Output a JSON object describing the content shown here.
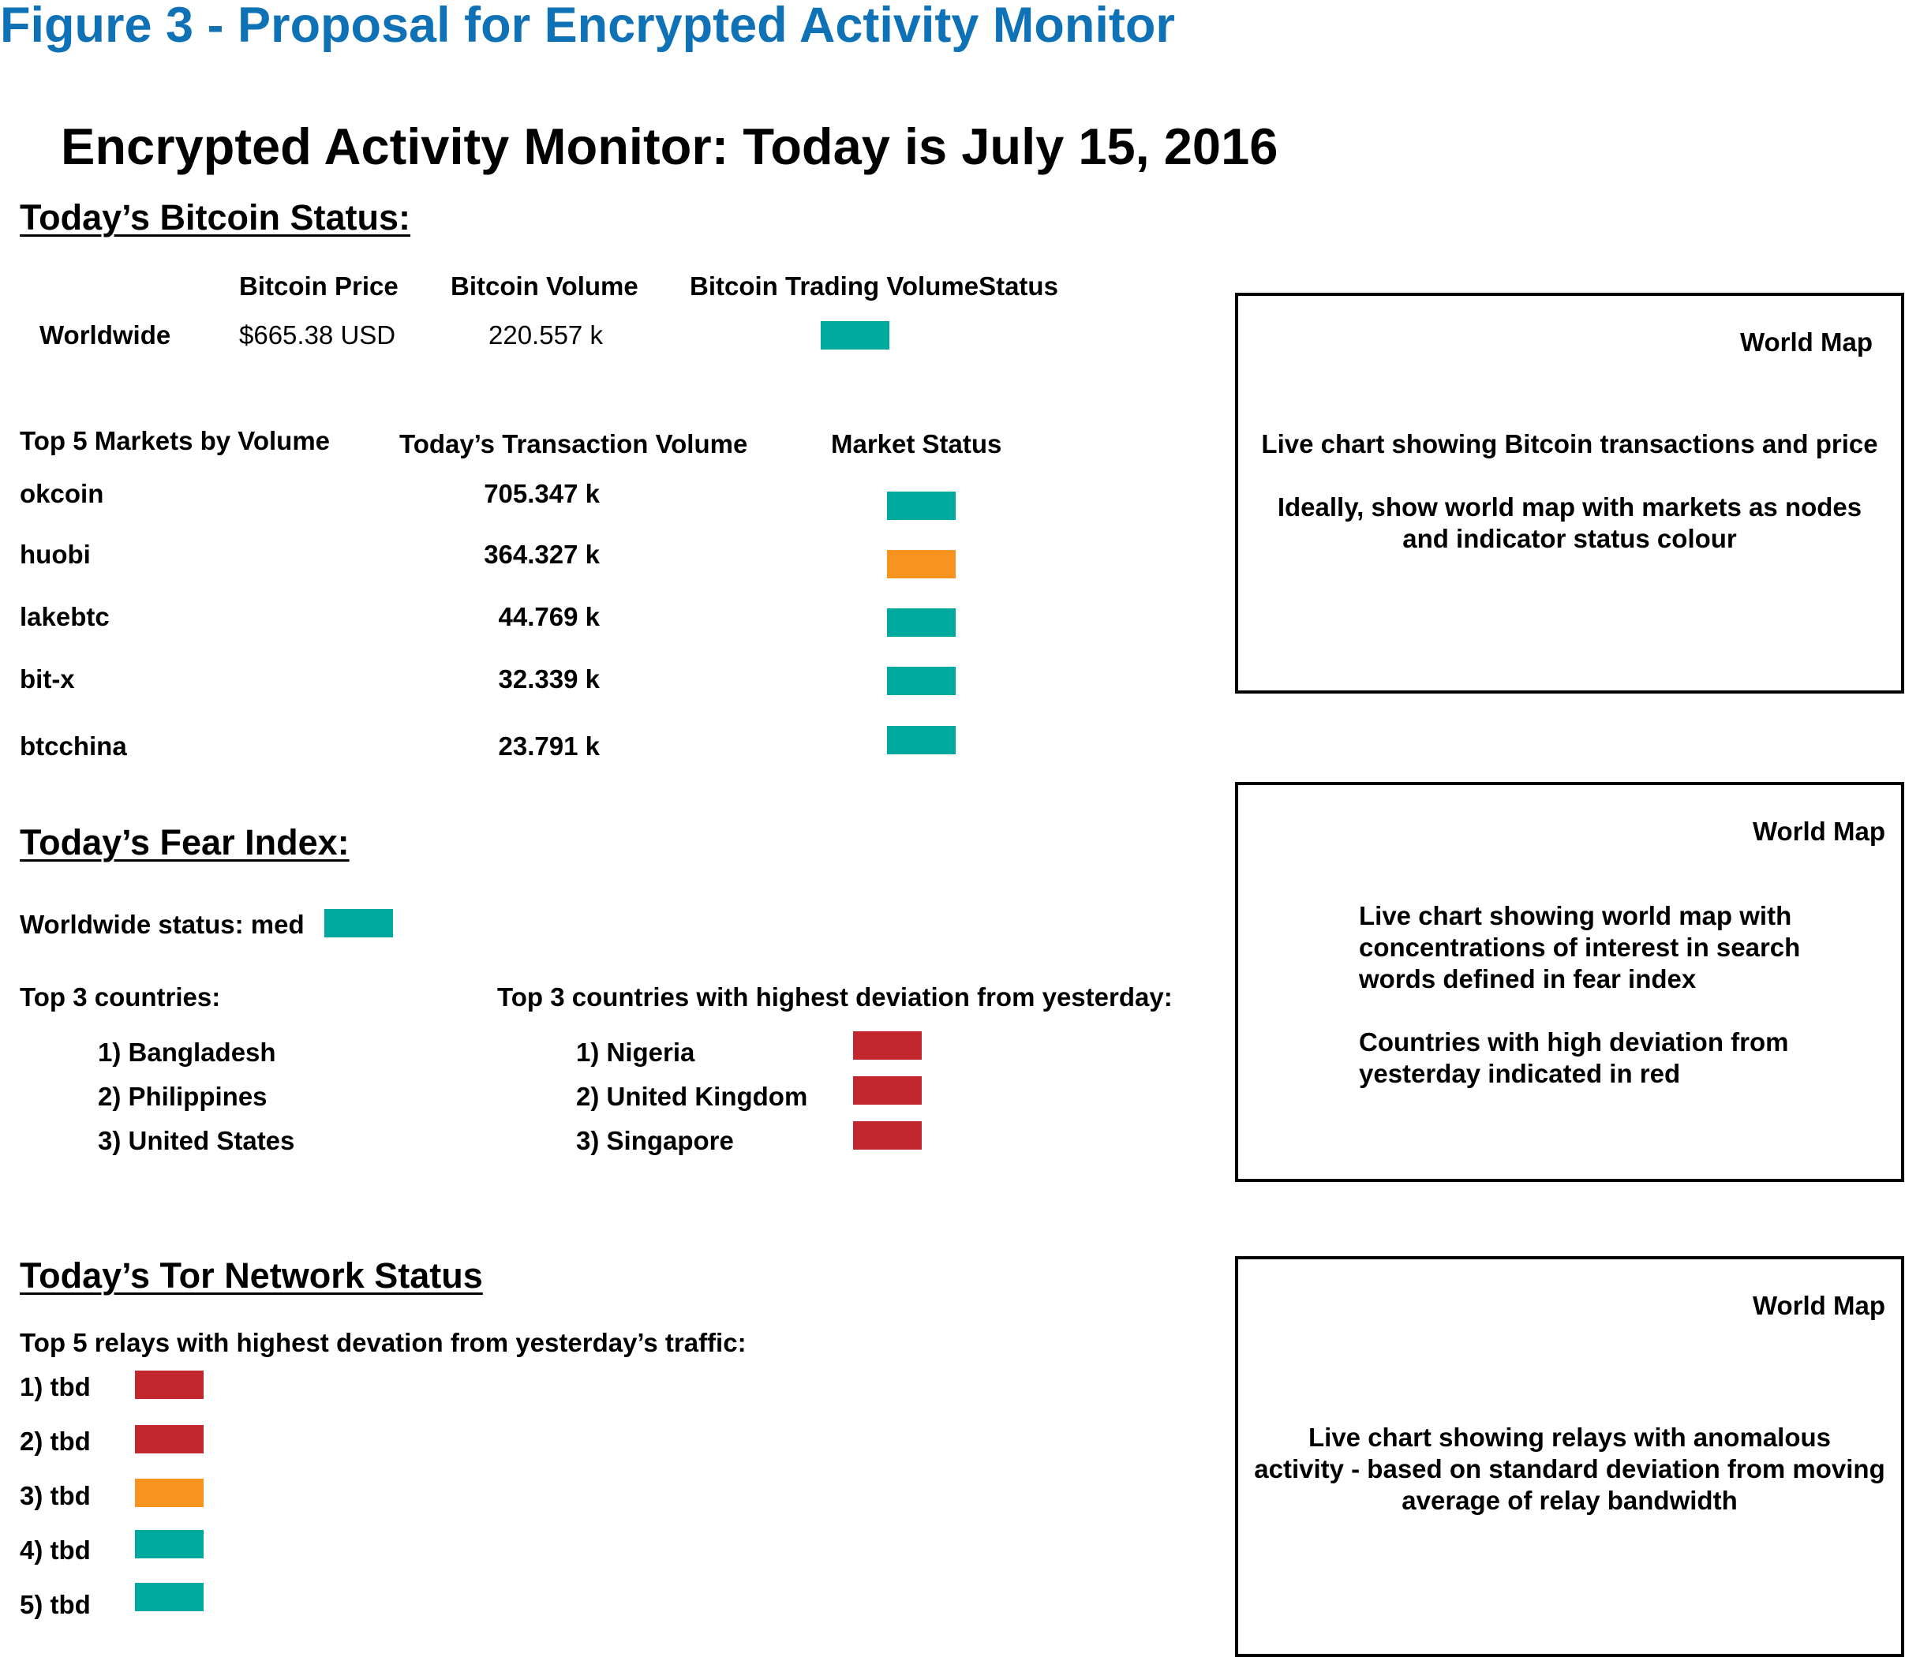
{
  "figure_title": "Figure 3 - Proposal for Encrypted Activity Monitor",
  "main_title": "Encrypted Activity Monitor: Today is July 15, 2016",
  "colors": {
    "teal": "#00a99d",
    "orange": "#f7931e",
    "red": "#c1272d",
    "figure_blue": "#0f72b6"
  },
  "bitcoin": {
    "section_title": "Today’s Bitcoin Status:",
    "headers": {
      "price": "Bitcoin Price",
      "volume": "Bitcoin Volume",
      "status": "Bitcoin Trading VolumeStatus"
    },
    "row": {
      "region": "Worldwide",
      "price": "$665.38 USD",
      "volume": "220.557 k",
      "status": "teal"
    },
    "markets": {
      "headers": {
        "name": "Top 5 Markets by Volume",
        "volume": "Today’s Transaction Volume",
        "status": "Market Status"
      },
      "rows": [
        {
          "name": "okcoin",
          "volume": "705.347 k",
          "status": "teal"
        },
        {
          "name": "huobi",
          "volume": "364.327 k",
          "status": "orange"
        },
        {
          "name": "lakebtc",
          "volume": "44.769 k",
          "status": "teal"
        },
        {
          "name": "bit-x",
          "volume": "32.339 k",
          "status": "teal"
        },
        {
          "name": "btcchina",
          "volume": "23.791 k",
          "status": "teal"
        }
      ]
    }
  },
  "fear": {
    "section_title": "Today’s Fear Index:",
    "worldwide_status": "Worldwide status: med",
    "worldwide_status_color": "teal",
    "top3_label": "Top 3 countries:",
    "top3": [
      "1) Bangladesh",
      "2) Philippines",
      "3) United States"
    ],
    "deviation_label": "Top 3 countries with highest deviation from yesterday:",
    "deviation": [
      {
        "name": "1) Nigeria",
        "status": "red"
      },
      {
        "name": "2) United Kingdom",
        "status": "red"
      },
      {
        "name": "3) Singapore",
        "status": "red"
      }
    ]
  },
  "tor": {
    "section_title": "Today’s Tor Network Status",
    "relays_label": "Top 5 relays with highest devation from yesterday’s traffic:",
    "relays": [
      {
        "name": "1) tbd",
        "status": "red"
      },
      {
        "name": "2) tbd",
        "status": "red"
      },
      {
        "name": "3) tbd",
        "status": "orange"
      },
      {
        "name": "4) tbd",
        "status": "teal"
      },
      {
        "name": "5) tbd",
        "status": "teal"
      }
    ]
  },
  "panels": [
    {
      "title": "World Map",
      "text": "Live chart showing Bitcoin transactions and price\n\nIdeally, show world map with markets as nodes\nand indicator status colour"
    },
    {
      "title": "World Map",
      "text": "Live chart showing world map with\nconcentrations of interest in search\nwords defined in fear index\n\nCountries with high deviation from\nyesterday indicated in red"
    },
    {
      "title": "World Map",
      "text": "Live chart showing relays with anomalous\nactivity - based on standard deviation from moving\naverage of relay bandwidth"
    }
  ]
}
